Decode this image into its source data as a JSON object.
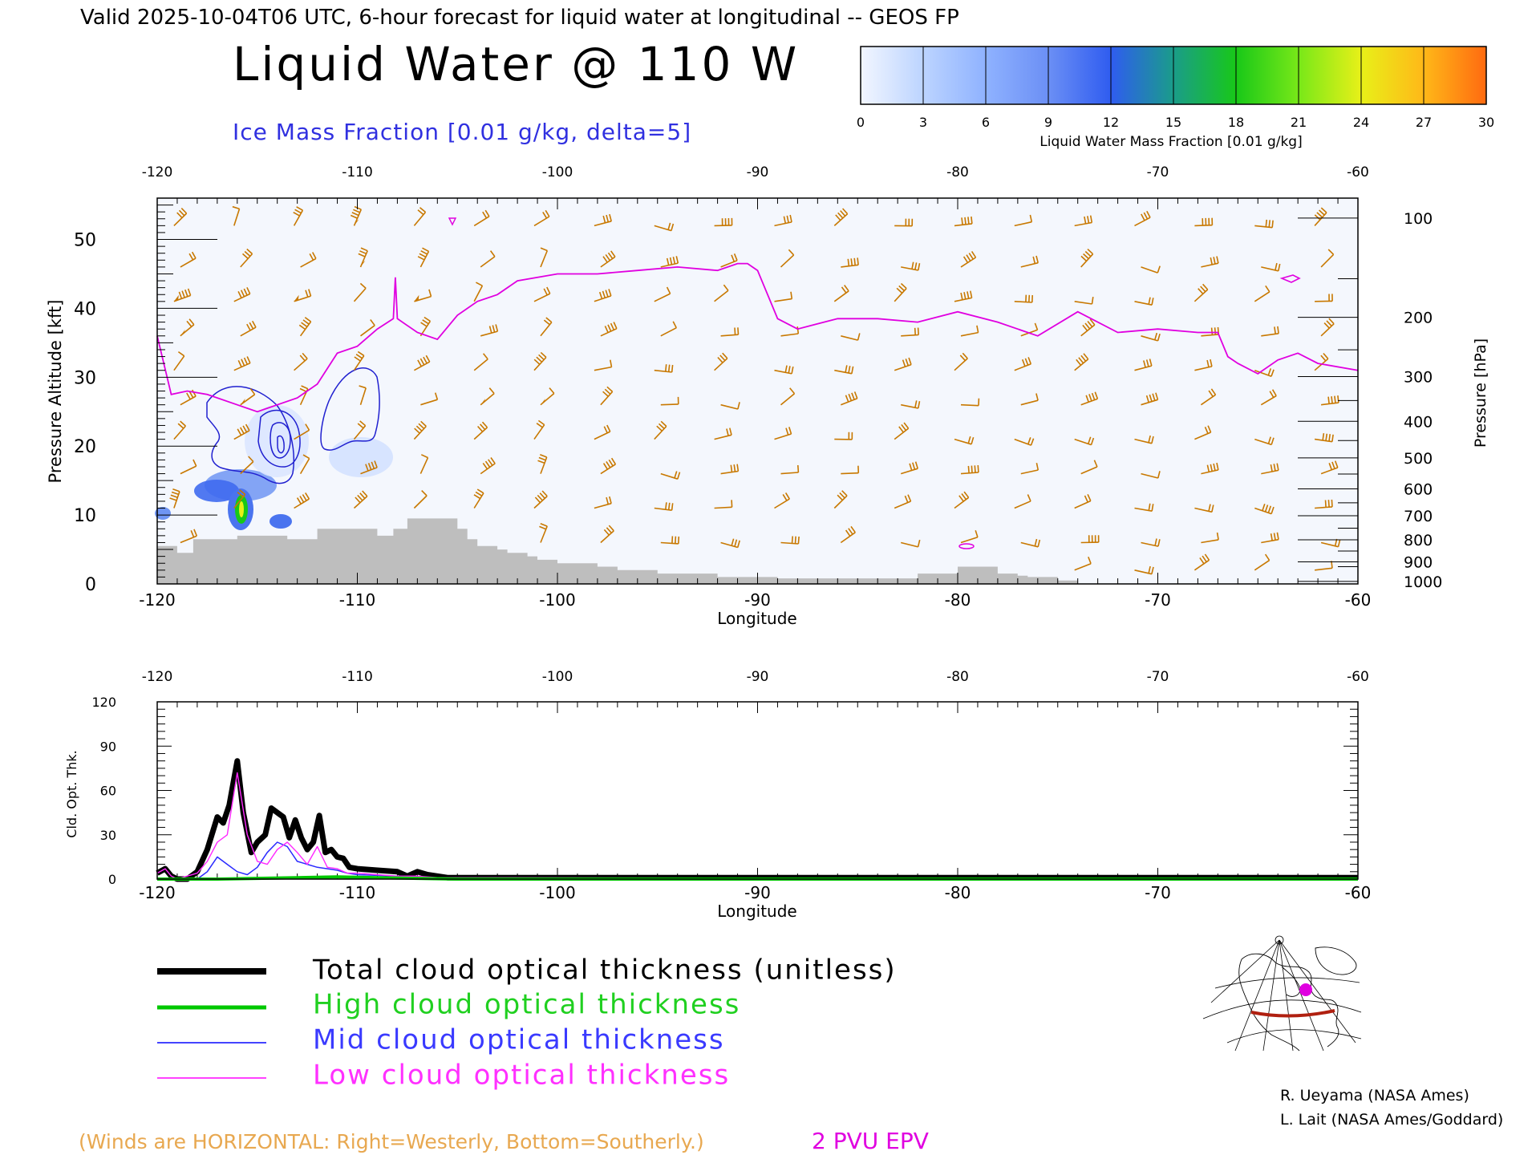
{
  "header": {
    "valid_line": "Valid 2025-10-04T06 UTC, 6-hour forecast for liquid water at longitudinal -- GEOS FP",
    "title": "Liquid Water @ 110 W",
    "subtitle": "Ice Mass Fraction [0.01 g/kg, delta=5]"
  },
  "colorbar": {
    "ticks": [
      "0",
      "3",
      "6",
      "9",
      "12",
      "15",
      "18",
      "21",
      "24",
      "27",
      "30"
    ],
    "label": "Liquid Water Mass Fraction [0.01 g/kg]",
    "colors": [
      "#f2f6ff",
      "#bcd4ff",
      "#8fb2ff",
      "#6b8ff5",
      "#2f5cf0",
      "#1a9c8a",
      "#18c818",
      "#78e818",
      "#e8f018",
      "#ffb818",
      "#ff6a10"
    ]
  },
  "chart_data": [
    {
      "type": "heatmap",
      "name": "cross-section",
      "xlabel": "Longitude",
      "ylabel": "Pressure Altitude [kft]",
      "y2label": "Pressure [hPa]",
      "x_ticks": [
        "-120",
        "-110",
        "-100",
        "-90",
        "-80",
        "-70",
        "-60"
      ],
      "y_ticks": [
        "0",
        "10",
        "20",
        "30",
        "40",
        "50"
      ],
      "pressure_ticks": [
        "100",
        "200",
        "300",
        "400",
        "500",
        "600",
        "700",
        "800",
        "900",
        "1000"
      ],
      "pressure_tick_kft": [
        53.1,
        38.7,
        30.1,
        23.6,
        18.3,
        13.8,
        9.9,
        6.4,
        3.2,
        0.36
      ],
      "xlim": [
        -120,
        -60
      ],
      "ylim": [
        0,
        56
      ],
      "epv_2pvu_line": {
        "x": [
          -120,
          -119.3,
          -118.5,
          -117.5,
          -116,
          -115,
          -114,
          -113,
          -112,
          -111,
          -110,
          -109,
          -108.2,
          -108.1,
          -108,
          -107,
          -106,
          -105,
          -104,
          -103,
          -102,
          -100,
          -98,
          -96,
          -94,
          -92,
          -91,
          -90.5,
          -90,
          -89,
          -88,
          -86,
          -84,
          -82,
          -80,
          -78,
          -77,
          -76,
          -74,
          -72,
          -70,
          -68,
          -67,
          -66.5,
          -66,
          -65,
          -64,
          -63,
          -62,
          -60
        ],
        "y": [
          36,
          27.5,
          28,
          27.5,
          26,
          25,
          26,
          27,
          29,
          33.5,
          34.5,
          37,
          38.5,
          44.5,
          38.5,
          36.5,
          35.5,
          39,
          41,
          42,
          44,
          45,
          45,
          45.5,
          46,
          45.5,
          46.5,
          46.5,
          45.5,
          38.5,
          37,
          38.5,
          38.5,
          38,
          39.5,
          38,
          37,
          36,
          39.5,
          36.5,
          37,
          36.5,
          36.5,
          33,
          32,
          30.5,
          32.5,
          33.5,
          32,
          31
        ]
      },
      "terrain": {
        "x": [
          -120,
          -119.5,
          -119,
          -118.2,
          -117.5,
          -116,
          -114.5,
          -113.5,
          -112,
          -111,
          -110,
          -109,
          -108.2,
          -107.5,
          -106,
          -105,
          -104.5,
          -104,
          -103,
          -102.5,
          -101.5,
          -101,
          -100,
          -99,
          -98,
          -97,
          -96,
          -95,
          -94,
          -93,
          -92,
          -91,
          -90,
          -89,
          -88,
          -87,
          -86,
          -85,
          -84,
          -83,
          -82,
          -80,
          -79,
          -78,
          -77,
          -76.5,
          -75.5,
          -75,
          -74,
          -60
        ],
        "y": [
          5.5,
          5.5,
          4.5,
          6.5,
          6.5,
          7,
          7,
          6.5,
          8,
          8,
          8,
          7,
          8,
          9.5,
          9.5,
          8,
          6.5,
          5.5,
          5,
          4.5,
          4,
          3.5,
          3,
          3,
          2.5,
          2,
          2,
          1.5,
          1.5,
          1.5,
          1,
          1,
          1,
          0.8,
          0.8,
          0.8,
          0.8,
          0.8,
          0.8,
          0.8,
          1.5,
          2.5,
          2.5,
          1.5,
          1.2,
          1,
          1,
          0.5,
          0,
          0
        ]
      }
    },
    {
      "type": "line",
      "name": "cloud-optical-thickness",
      "xlabel": "Longitude",
      "ylabel": "Cld. Opt. Thk.",
      "x_ticks": [
        "-120",
        "-110",
        "-100",
        "-90",
        "-80",
        "-70",
        "-60"
      ],
      "y_ticks": [
        "0",
        "30",
        "60",
        "90",
        "120"
      ],
      "xlim": [
        -120,
        -60
      ],
      "ylim": [
        0,
        120
      ],
      "series": [
        {
          "name": "Total cloud optical thickness (unitless)",
          "color": "#000000",
          "x": [
            -120,
            -119.6,
            -119.3,
            -119,
            -118.5,
            -118,
            -117.5,
            -117,
            -116.7,
            -116.4,
            -116,
            -115.7,
            -115.3,
            -115,
            -114.6,
            -114.3,
            -114,
            -113.7,
            -113.4,
            -113.1,
            -112.8,
            -112.5,
            -112.2,
            -111.9,
            -111.6,
            -111.3,
            -111,
            -110.7,
            -110.4,
            -110,
            -109,
            -108,
            -107.5,
            -107,
            -106.5,
            -106,
            -105.5,
            -60
          ],
          "y": [
            4,
            7,
            2,
            0,
            0,
            5,
            20,
            42,
            38,
            50,
            80,
            45,
            18,
            25,
            30,
            48,
            45,
            42,
            28,
            40,
            28,
            20,
            25,
            43,
            18,
            20,
            15,
            14,
            8,
            7,
            6,
            5,
            2,
            5,
            3,
            2,
            1,
            1
          ]
        },
        {
          "name": "High cloud optical thickness",
          "color": "#00c800",
          "x": [
            -120,
            -117,
            -115,
            -113,
            -111,
            -109,
            -107,
            -105,
            -60
          ],
          "y": [
            0,
            0,
            0.5,
            1,
            1.5,
            1,
            0.5,
            0,
            0
          ]
        },
        {
          "name": "Mid cloud optical thickness",
          "color": "#2a2aff",
          "x": [
            -120,
            -118,
            -117.5,
            -117,
            -116.5,
            -116,
            -115.5,
            -115,
            -114.5,
            -114,
            -113.5,
            -113,
            -112.5,
            -112,
            -111.5,
            -111,
            -110.5,
            -110,
            -108,
            -106,
            -60
          ],
          "y": [
            0,
            0,
            5,
            15,
            10,
            5,
            3,
            8,
            18,
            25,
            22,
            12,
            10,
            8,
            7,
            6,
            4,
            3,
            2,
            0,
            0
          ]
        },
        {
          "name": "Low cloud optical thickness",
          "color": "#ff28ff",
          "x": [
            -120,
            -119.6,
            -119.3,
            -119,
            -118,
            -117.5,
            -117,
            -116.5,
            -116,
            -115.5,
            -115,
            -114.5,
            -114,
            -113.5,
            -113,
            -112.5,
            -112,
            -111.5,
            -111,
            -110.5,
            -110,
            -109,
            -108,
            -107,
            -106,
            -60
          ],
          "y": [
            4,
            7,
            2,
            0,
            4,
            12,
            25,
            30,
            72,
            30,
            12,
            10,
            20,
            25,
            18,
            10,
            22,
            8,
            7,
            4,
            4,
            3,
            2,
            2,
            1,
            0
          ]
        }
      ]
    }
  ],
  "legend": {
    "total": "Total cloud optical thickness (unitless)",
    "high": "High cloud optical thickness",
    "mid": "Mid cloud optical thickness",
    "low": "Low cloud optical thickness"
  },
  "footer": {
    "winds_note": "(Winds are HORIZONTAL: Right=Westerly, Bottom=Southerly.)",
    "epv_label": "2 PVU EPV",
    "credit_1": "R. Ueyama (NASA Ames)",
    "credit_2": "L. Lait (NASA Ames/Goddard)"
  },
  "colors": {
    "wind_barbs": "#c87800",
    "epv_line": "#e000e0",
    "ice_contour": "#2020d0",
    "terrain": "#bebebe",
    "section_line": "#b02010"
  }
}
